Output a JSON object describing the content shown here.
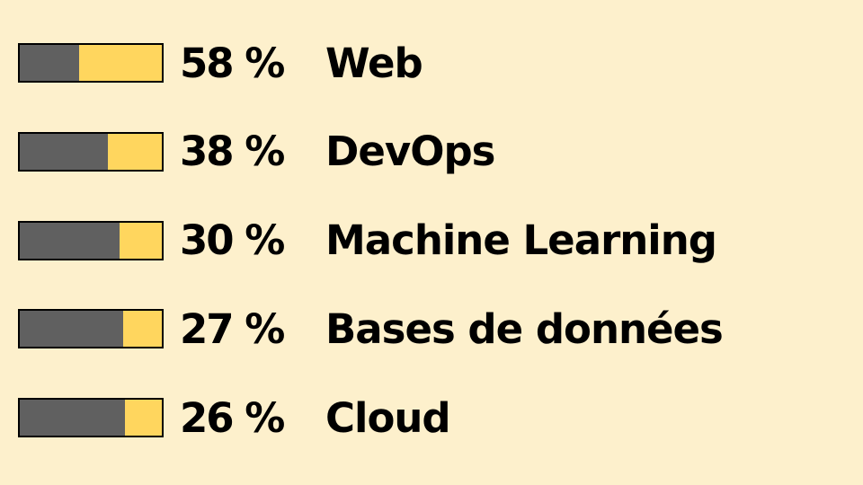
{
  "colors": {
    "background": "#FDF0CC",
    "bar_fill": "#606060",
    "bar_remainder": "#FFD65E",
    "text": "#000000"
  },
  "chart_data": {
    "type": "bar",
    "categories": [
      "Web",
      "DevOps",
      "Machine Learning",
      "Bases de données",
      "Cloud"
    ],
    "values": [
      58,
      38,
      30,
      27,
      26
    ],
    "value_labels": [
      "58 %",
      "38 %",
      "30 %",
      "27 %",
      "26 %"
    ],
    "value_max": 100
  }
}
